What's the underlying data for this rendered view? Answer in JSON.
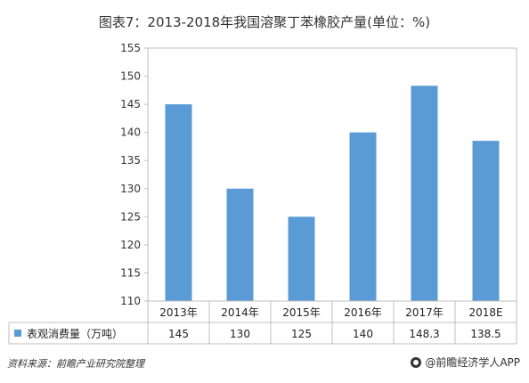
{
  "chart_data": {
    "type": "bar",
    "title": "图表7：2013-2018年我国溶聚丁苯橡胶产量(单位：%)",
    "categories": [
      "2013年",
      "2014年",
      "2015年",
      "2016年",
      "2017年",
      "2018E"
    ],
    "series": [
      {
        "name": "表观消费量（万吨）",
        "values": [
          145,
          130,
          125,
          140,
          148.3,
          138.5
        ],
        "display_values": [
          "145",
          "130",
          "125",
          "140",
          "148.3",
          "138.5"
        ]
      }
    ],
    "yticks": [
      110,
      115,
      120,
      125,
      130,
      135,
      140,
      145,
      150,
      155
    ],
    "ylim": [
      110,
      155
    ],
    "grid": false,
    "legend": "bottom-table",
    "bar_color": "#5b9bd5"
  },
  "footer": {
    "source": "资料来源：前瞻产业研究院整理",
    "brand": "@前瞻经济学人APP"
  }
}
